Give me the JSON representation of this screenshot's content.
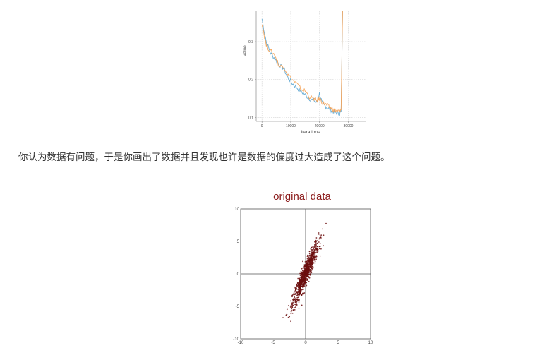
{
  "chart_data": [
    {
      "type": "line",
      "xlabel": "iterations",
      "ylabel": "value",
      "x_ticks": [
        "0",
        "10000",
        "20000",
        "30000"
      ],
      "y_ticks": [
        "0.1",
        "0.2",
        "0.3"
      ],
      "xlim": [
        -2000,
        36000
      ],
      "ylim": [
        0.09,
        0.38
      ],
      "grid": true,
      "series": [
        {
          "color": "#6aaed6",
          "x": [
            0,
            1500,
            3000,
            4500,
            6000,
            7500,
            9000,
            10500,
            12000,
            13500,
            15000,
            16500,
            18000,
            19000,
            20000,
            21000,
            22000,
            23000,
            24000,
            25000,
            26000,
            27000,
            27500,
            28000
          ],
          "y": [
            0.36,
            0.3,
            0.27,
            0.255,
            0.24,
            0.23,
            0.205,
            0.19,
            0.18,
            0.17,
            0.16,
            0.15,
            0.145,
            0.14,
            0.165,
            0.135,
            0.13,
            0.125,
            0.12,
            0.115,
            0.112,
            0.11,
            0.115,
            0.38
          ]
        },
        {
          "color": "#f5a55b",
          "x": [
            0,
            1500,
            3000,
            4500,
            6000,
            7500,
            9000,
            10500,
            12000,
            13500,
            15000,
            16500,
            18000,
            19000,
            20000,
            21000,
            22000,
            23000,
            24000,
            25000,
            26000,
            27000,
            27500,
            28000
          ],
          "y": [
            0.35,
            0.29,
            0.275,
            0.265,
            0.235,
            0.235,
            0.215,
            0.2,
            0.19,
            0.175,
            0.17,
            0.155,
            0.15,
            0.145,
            0.15,
            0.14,
            0.135,
            0.13,
            0.125,
            0.12,
            0.118,
            0.115,
            0.12,
            0.38
          ]
        }
      ]
    },
    {
      "type": "scatter",
      "title": "original data",
      "xlim": [
        -10,
        10
      ],
      "ylim": [
        -10,
        10
      ],
      "x_ticks": [
        "-10",
        "-5",
        "0",
        "5",
        "10"
      ],
      "y_ticks": [
        "10",
        "5",
        "0",
        "-5",
        "-10"
      ],
      "grid": false,
      "point_color": "#6b0d0d",
      "distribution": {
        "mean": [
          0,
          0
        ],
        "x_range": [
          -3.5,
          4.5
        ],
        "y_range": [
          -8.5,
          7.5
        ],
        "approx_points": 1000
      }
    }
  ],
  "text": {
    "paragraph": "你认为数据有问题，于是你画出了数据并且发现也许是数据的偏度过大造成了这个问题。"
  },
  "colors": {
    "scatter_points": "#6b0d0d",
    "scatter_title": "#8b1a1a",
    "line_blue": "#6aaed6",
    "line_orange": "#f5a55b"
  }
}
